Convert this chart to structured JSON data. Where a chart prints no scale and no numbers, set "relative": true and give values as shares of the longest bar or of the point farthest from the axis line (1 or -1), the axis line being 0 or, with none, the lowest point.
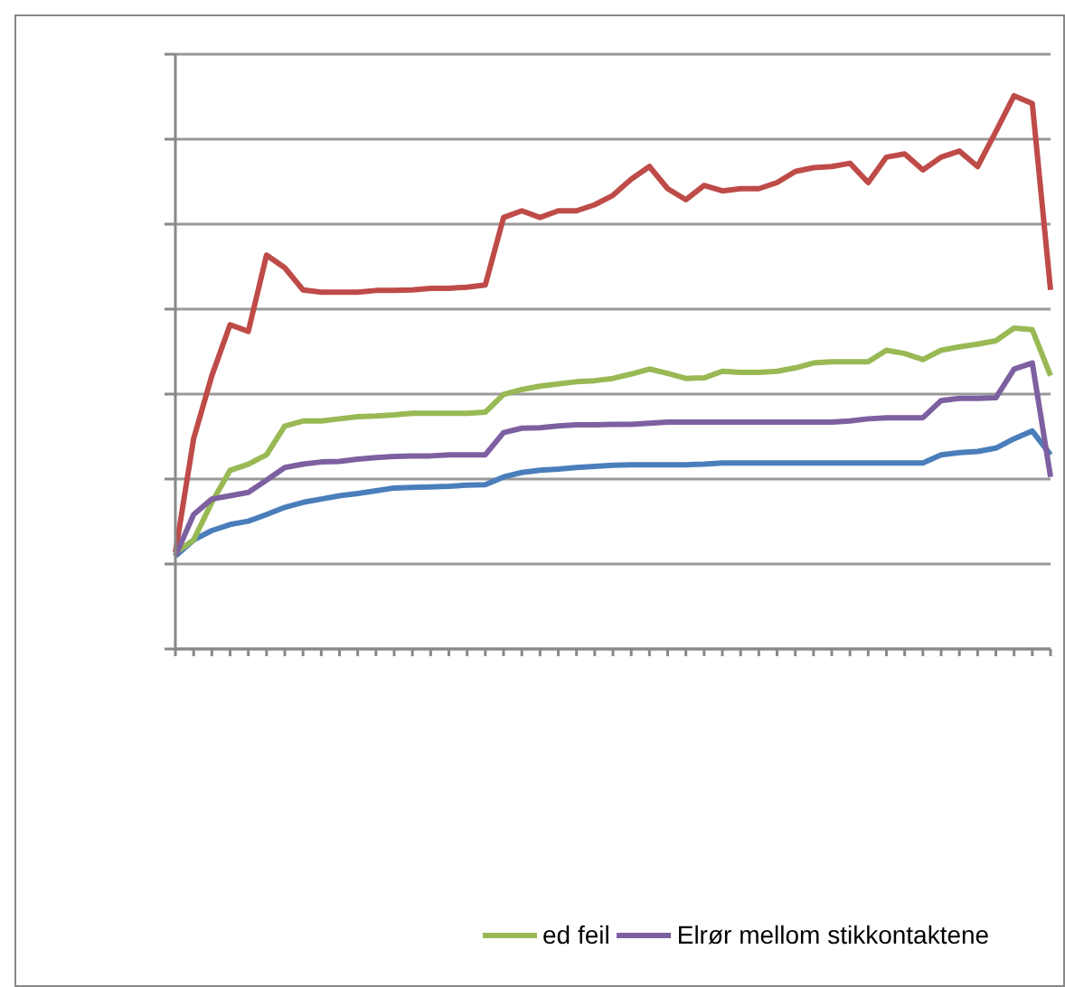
{
  "chart_data": {
    "type": "line",
    "relative": true,
    "grid": "y",
    "legend": "bottom",
    "marker": "none",
    "line_style": "solid",
    "categories": [
      null,
      null,
      null,
      null,
      null,
      null,
      null,
      null,
      null,
      null,
      null,
      null,
      null,
      null,
      null,
      null,
      null,
      null,
      null,
      null,
      null,
      null,
      null,
      null,
      null,
      null,
      null,
      null,
      null,
      null,
      null,
      null,
      null,
      null,
      null,
      null,
      null,
      null,
      null,
      null,
      null,
      null,
      null,
      null,
      null,
      null,
      null,
      null,
      null
    ],
    "series": [
      {
        "color": "#4a7ebb",
        "values": [
          0.168,
          0.197,
          0.214,
          0.225,
          0.231,
          0.243,
          0.256,
          0.265,
          0.271,
          0.277,
          0.281,
          0.286,
          0.291,
          0.292,
          0.293,
          0.294,
          0.296,
          0.297,
          0.311,
          0.319,
          0.323,
          0.325,
          0.328,
          0.33,
          0.332,
          0.333,
          0.333,
          0.333,
          0.333,
          0.334,
          0.336,
          0.336,
          0.336,
          0.336,
          0.336,
          0.336,
          0.336,
          0.336,
          0.336,
          0.336,
          0.336,
          0.336,
          0.351,
          0.355,
          0.357,
          0.363,
          0.38,
          0.394,
          0.351
        ]
      },
      {
        "color": "#be4b48",
        "values": [
          0.174,
          0.38,
          0.494,
          0.586,
          0.574,
          0.712,
          0.689,
          0.649,
          0.645,
          0.645,
          0.645,
          0.648,
          0.648,
          0.649,
          0.652,
          0.652,
          0.654,
          0.658,
          0.78,
          0.792,
          0.78,
          0.792,
          0.792,
          0.803,
          0.82,
          0.849,
          0.872,
          0.832,
          0.812,
          0.838,
          0.828,
          0.832,
          0.832,
          0.843,
          0.863,
          0.87,
          0.872,
          0.878,
          0.843,
          0.889,
          0.895,
          0.866,
          0.889,
          0.9,
          0.872,
          0.935,
          1,
          0.986,
          0.649
        ]
      },
      {
        "name": "ed feil",
        "color": "#98b954",
        "values": [
          0.174,
          0.197,
          0.265,
          0.323,
          0.334,
          0.351,
          0.403,
          0.412,
          0.412,
          0.416,
          0.42,
          0.421,
          0.423,
          0.426,
          0.426,
          0.426,
          0.426,
          0.428,
          0.46,
          0.469,
          0.475,
          0.479,
          0.483,
          0.485,
          0.489,
          0.497,
          0.506,
          0.498,
          0.489,
          0.49,
          0.502,
          0.5,
          0.5,
          0.502,
          0.508,
          0.517,
          0.519,
          0.519,
          0.519,
          0.54,
          0.534,
          0.523,
          0.54,
          0.546,
          0.551,
          0.557,
          0.58,
          0.577,
          0.494
        ]
      },
      {
        "name": "Elrør mellom stikkontaktene",
        "color": "#7d60a0",
        "values": [
          0.168,
          0.243,
          0.271,
          0.277,
          0.283,
          0.305,
          0.328,
          0.334,
          0.338,
          0.339,
          0.343,
          0.346,
          0.348,
          0.349,
          0.349,
          0.351,
          0.351,
          0.351,
          0.391,
          0.399,
          0.4,
          0.403,
          0.405,
          0.405,
          0.406,
          0.406,
          0.408,
          0.41,
          0.41,
          0.41,
          0.41,
          0.41,
          0.41,
          0.41,
          0.41,
          0.41,
          0.41,
          0.412,
          0.416,
          0.418,
          0.418,
          0.418,
          0.449,
          0.453,
          0.453,
          0.454,
          0.506,
          0.517,
          0.311
        ]
      }
    ]
  }
}
